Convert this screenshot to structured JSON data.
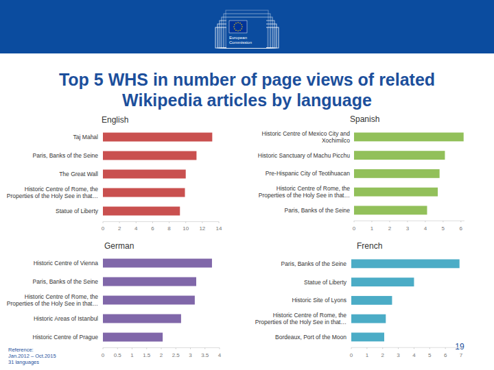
{
  "header": {
    "logo_text": [
      "European",
      "Commission"
    ]
  },
  "slide": {
    "title": [
      "Top 5 WHS in number of page views of related",
      "Wikipedia articles by language"
    ],
    "reference": [
      "Reference:",
      "Jan.2012 – Oct.2015",
      "31 languages"
    ],
    "page_number": "19"
  },
  "chart_data": [
    {
      "type": "bar",
      "orientation": "horizontal",
      "title": "English",
      "categories": [
        "Taj Mahal",
        "Paris, Banks of the Seine",
        "The Great Wall",
        "Historic Centre of Rome, the Properties of the Holy See in that…",
        "Statue of Liberty"
      ],
      "values": [
        13.2,
        11.3,
        10.0,
        9.9,
        9.3
      ],
      "color": "#c9504f",
      "xlim": [
        0,
        14
      ],
      "xticks": [
        0,
        2,
        4,
        6,
        8,
        10,
        12,
        14
      ],
      "grid": false
    },
    {
      "type": "bar",
      "orientation": "horizontal",
      "title": "Spanish",
      "categories": [
        "Historic Centre of Mexico City and Xochimilco",
        "Historic Sanctuary of Machu Picchu",
        "Pre-Hispanic City of Teotihuacan",
        "Historic Centre of Rome, the Properties of the Holy See in that…",
        "Paris, Banks of the Seine"
      ],
      "values": [
        6.15,
        5.1,
        4.8,
        4.7,
        4.1
      ],
      "color": "#92c05a",
      "xlim": [
        0,
        6.2
      ],
      "xticks": [
        0,
        1,
        2,
        3,
        4,
        5,
        6
      ],
      "grid": false
    },
    {
      "type": "bar",
      "orientation": "horizontal",
      "title": "German",
      "categories": [
        "Historic Centre of Vienna",
        "Paris, Banks of the Seine",
        "Historic Centre of Rome, the Properties of the Holy See in that…",
        "Historic Areas of Istanbul",
        "Historic Centre of Prague"
      ],
      "values": [
        3.74,
        3.2,
        3.15,
        2.68,
        2.05
      ],
      "color": "#8067a9",
      "xlim": [
        0,
        4
      ],
      "xticks": [
        0,
        0.5,
        1,
        1.5,
        2,
        2.5,
        3,
        3.5,
        4
      ],
      "grid": false
    },
    {
      "type": "bar",
      "orientation": "horizontal",
      "title": "French",
      "categories": [
        "Paris, Banks of the Seine",
        "Statue of Liberty",
        "Historic Site of Lyons",
        "Historic Centre of Rome, the Properties of the Holy See in that…",
        "Bordeaux, Port of the Moon"
      ],
      "values": [
        6.9,
        4.0,
        2.6,
        2.2,
        2.1
      ],
      "color": "#4bacc6",
      "xlim": [
        0,
        7
      ],
      "xticks": [
        0,
        1,
        2,
        3,
        4,
        5,
        6,
        7
      ],
      "grid": false
    }
  ]
}
